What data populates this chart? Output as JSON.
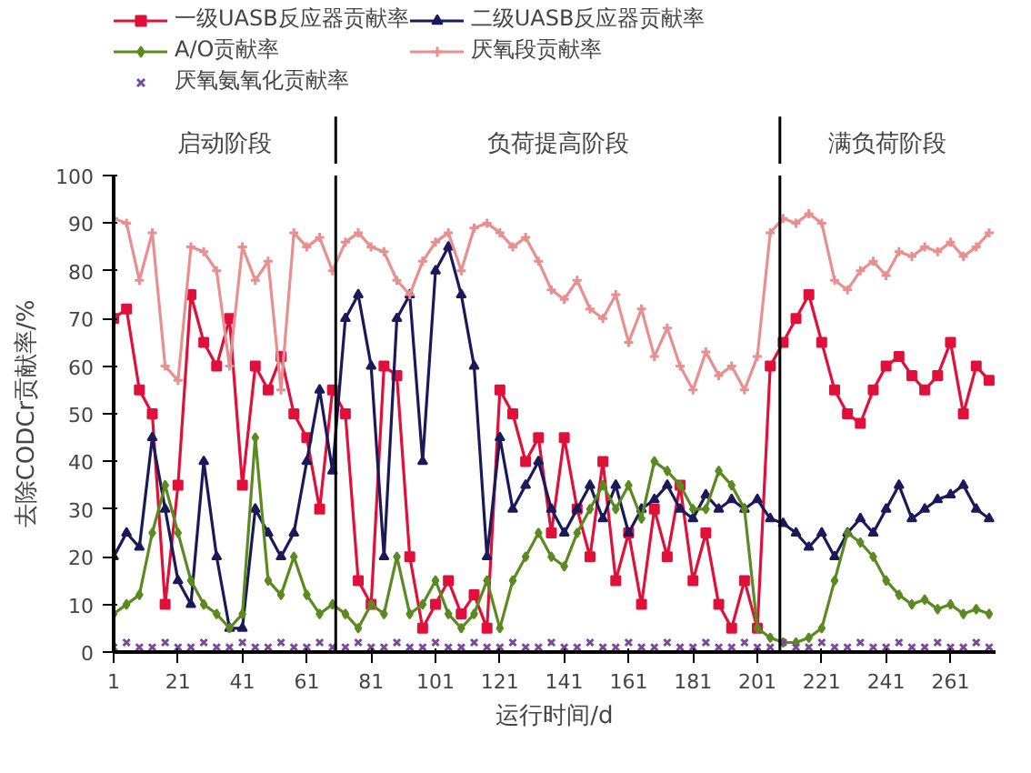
{
  "chart_data": {
    "type": "line",
    "xlabel": "运行时间/d",
    "ylabel": "去除CODCr贡献率/%",
    "x": [
      1,
      5,
      9,
      13,
      17,
      21,
      25,
      29,
      33,
      37,
      41,
      45,
      49,
      53,
      57,
      61,
      65,
      69,
      73,
      77,
      81,
      85,
      89,
      93,
      97,
      101,
      105,
      109,
      113,
      117,
      121,
      125,
      129,
      133,
      137,
      141,
      145,
      149,
      153,
      157,
      161,
      165,
      169,
      173,
      177,
      181,
      185,
      189,
      193,
      197,
      201,
      205,
      209,
      213,
      217,
      221,
      225,
      229,
      233,
      237,
      241,
      245,
      249,
      253,
      257,
      261,
      265,
      269,
      273
    ],
    "series": [
      {
        "name": "一级UASB反应器贡献率",
        "color": "#e0103a",
        "marker": "square",
        "values": [
          70,
          72,
          55,
          50,
          10,
          35,
          75,
          65,
          60,
          70,
          35,
          60,
          55,
          62,
          50,
          45,
          30,
          55,
          50,
          15,
          10,
          60,
          58,
          20,
          5,
          10,
          15,
          8,
          12,
          5,
          55,
          50,
          40,
          45,
          25,
          45,
          30,
          20,
          40,
          15,
          25,
          10,
          30,
          20,
          35,
          15,
          25,
          10,
          5,
          15,
          5,
          60,
          65,
          70,
          75,
          65,
          55,
          50,
          48,
          55,
          60,
          62,
          58,
          55,
          58,
          65,
          50,
          60,
          57
        ]
      },
      {
        "name": "二级UASB反应器贡献率",
        "color": "#1a1a5a",
        "marker": "triangle",
        "values": [
          20,
          25,
          22,
          45,
          30,
          15,
          10,
          40,
          20,
          5,
          5,
          30,
          25,
          20,
          25,
          40,
          55,
          38,
          70,
          75,
          60,
          20,
          70,
          75,
          40,
          80,
          85,
          75,
          60,
          20,
          45,
          30,
          35,
          40,
          30,
          25,
          30,
          35,
          28,
          35,
          25,
          30,
          32,
          35,
          30,
          28,
          33,
          30,
          32,
          30,
          32,
          28,
          27,
          25,
          22,
          25,
          20,
          25,
          28,
          25,
          30,
          35,
          28,
          30,
          32,
          33,
          35,
          30,
          28
        ]
      },
      {
        "name": "A/O贡献率",
        "color": "#5a8a20",
        "marker": "diamond",
        "values": [
          8,
          10,
          12,
          25,
          35,
          25,
          15,
          10,
          8,
          5,
          8,
          45,
          15,
          12,
          20,
          12,
          8,
          10,
          8,
          5,
          10,
          8,
          20,
          8,
          10,
          15,
          8,
          5,
          8,
          15,
          5,
          15,
          20,
          25,
          20,
          18,
          25,
          30,
          35,
          30,
          35,
          28,
          40,
          38,
          35,
          30,
          30,
          38,
          35,
          30,
          5,
          3,
          2,
          2,
          3,
          5,
          15,
          25,
          23,
          20,
          15,
          12,
          10,
          11,
          9,
          10,
          8,
          9,
          8
        ]
      },
      {
        "name": "厌氧段贡献率",
        "color": "#e89090",
        "marker": "cross",
        "values": [
          91,
          90,
          78,
          88,
          60,
          57,
          85,
          84,
          80,
          60,
          85,
          78,
          82,
          55,
          88,
          85,
          87,
          80,
          86,
          88,
          85,
          84,
          78,
          75,
          82,
          86,
          88,
          80,
          89,
          90,
          88,
          85,
          87,
          82,
          76,
          74,
          78,
          72,
          70,
          75,
          65,
          72,
          62,
          68,
          60,
          55,
          63,
          58,
          60,
          55,
          62,
          88,
          91,
          90,
          92,
          90,
          78,
          76,
          80,
          82,
          79,
          84,
          83,
          85,
          84,
          86,
          83,
          85,
          88
        ]
      },
      {
        "name": "厌氧氨氧化贡献率",
        "color": "#7a4a9a",
        "type": "scatter",
        "marker": "x",
        "values": [
          1,
          2,
          1,
          1,
          2,
          1,
          1,
          2,
          1,
          1,
          2,
          1,
          1,
          2,
          1,
          1,
          2,
          1,
          1,
          2,
          1,
          1,
          2,
          1,
          1,
          2,
          1,
          1,
          2,
          1,
          1,
          2,
          1,
          1,
          2,
          1,
          1,
          2,
          1,
          1,
          2,
          1,
          1,
          2,
          1,
          1,
          2,
          1,
          1,
          2,
          1,
          1,
          2,
          1,
          1,
          2,
          1,
          1,
          2,
          1,
          1,
          2,
          1,
          1,
          2,
          1,
          1,
          2,
          1
        ]
      }
    ],
    "xlim": [
      1,
      275
    ],
    "xticks": [
      1,
      21,
      41,
      61,
      81,
      101,
      121,
      141,
      161,
      181,
      201,
      221,
      241,
      261
    ],
    "ylim": [
      0,
      100
    ],
    "yticks": [
      0,
      10,
      20,
      30,
      40,
      50,
      60,
      70,
      80,
      90,
      100
    ],
    "ref_lines": [
      {
        "axis": "x",
        "value": 70,
        "color": "#000000"
      },
      {
        "axis": "x",
        "value": 208,
        "color": "#000000"
      }
    ],
    "annotations": [
      "启动阶段",
      "负荷提高阶段",
      "满负荷阶段"
    ],
    "legend": "top",
    "grid": false
  }
}
